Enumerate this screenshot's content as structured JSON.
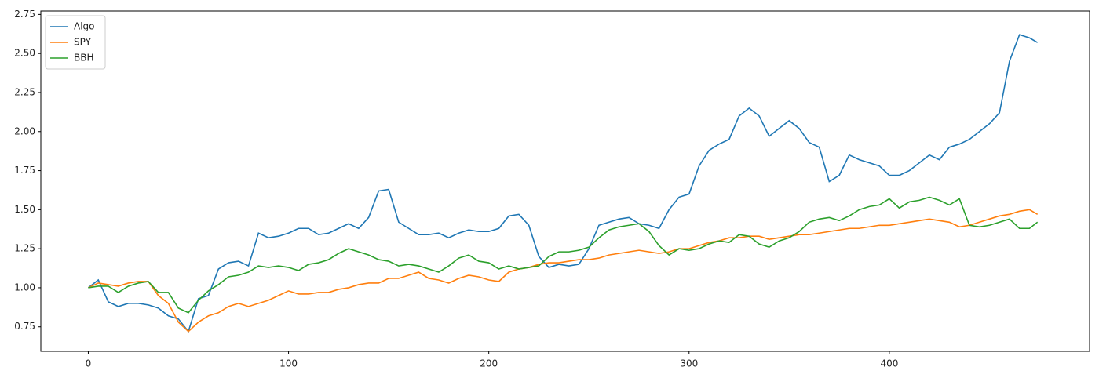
{
  "chart_data": {
    "type": "line",
    "x": [
      0,
      5,
      10,
      15,
      20,
      25,
      30,
      35,
      40,
      45,
      50,
      55,
      60,
      65,
      70,
      75,
      80,
      85,
      90,
      95,
      100,
      105,
      110,
      115,
      120,
      125,
      130,
      135,
      140,
      145,
      150,
      155,
      160,
      165,
      170,
      175,
      180,
      185,
      190,
      195,
      200,
      205,
      210,
      215,
      220,
      225,
      230,
      235,
      240,
      245,
      250,
      255,
      260,
      265,
      270,
      275,
      280,
      285,
      290,
      295,
      300,
      305,
      310,
      315,
      320,
      325,
      330,
      335,
      340,
      345,
      350,
      355,
      360,
      365,
      370,
      375,
      380,
      385,
      390,
      395,
      400,
      405,
      410,
      415,
      420,
      425,
      430,
      435,
      440,
      445,
      450,
      455,
      460,
      465,
      470,
      474
    ],
    "series": [
      {
        "name": "Algo",
        "color": "#1f77b4",
        "values": [
          1.0,
          1.05,
          0.91,
          0.88,
          0.9,
          0.9,
          0.89,
          0.87,
          0.82,
          0.8,
          0.72,
          0.93,
          0.95,
          1.12,
          1.16,
          1.17,
          1.14,
          1.35,
          1.32,
          1.33,
          1.35,
          1.38,
          1.38,
          1.34,
          1.35,
          1.38,
          1.41,
          1.38,
          1.45,
          1.62,
          1.63,
          1.42,
          1.38,
          1.34,
          1.34,
          1.35,
          1.32,
          1.35,
          1.37,
          1.36,
          1.36,
          1.38,
          1.46,
          1.47,
          1.4,
          1.2,
          1.13,
          1.15,
          1.14,
          1.15,
          1.25,
          1.4,
          1.42,
          1.44,
          1.45,
          1.41,
          1.4,
          1.38,
          1.5,
          1.58,
          1.6,
          1.78,
          1.88,
          1.92,
          1.95,
          2.1,
          2.15,
          2.1,
          1.97,
          2.02,
          2.07,
          2.02,
          1.93,
          1.9,
          1.68,
          1.72,
          1.85,
          1.82,
          1.8,
          1.78,
          1.72,
          1.72,
          1.75,
          1.8,
          1.85,
          1.82,
          1.9,
          1.92,
          1.95,
          2.0,
          2.05,
          2.12,
          2.45,
          2.62,
          2.6,
          2.57
        ]
      },
      {
        "name": "SPY",
        "color": "#ff7f0e",
        "values": [
          1.0,
          1.03,
          1.02,
          1.01,
          1.03,
          1.04,
          1.04,
          0.95,
          0.9,
          0.78,
          0.72,
          0.78,
          0.82,
          0.84,
          0.88,
          0.9,
          0.88,
          0.9,
          0.92,
          0.95,
          0.98,
          0.96,
          0.96,
          0.97,
          0.97,
          0.99,
          1.0,
          1.02,
          1.03,
          1.03,
          1.06,
          1.06,
          1.08,
          1.1,
          1.06,
          1.05,
          1.03,
          1.06,
          1.08,
          1.07,
          1.05,
          1.04,
          1.1,
          1.12,
          1.13,
          1.15,
          1.16,
          1.16,
          1.17,
          1.18,
          1.18,
          1.19,
          1.21,
          1.22,
          1.23,
          1.24,
          1.23,
          1.22,
          1.23,
          1.25,
          1.25,
          1.27,
          1.29,
          1.3,
          1.32,
          1.32,
          1.33,
          1.33,
          1.31,
          1.32,
          1.33,
          1.34,
          1.34,
          1.35,
          1.36,
          1.37,
          1.38,
          1.38,
          1.39,
          1.4,
          1.4,
          1.41,
          1.42,
          1.43,
          1.44,
          1.43,
          1.42,
          1.39,
          1.4,
          1.42,
          1.44,
          1.46,
          1.47,
          1.49,
          1.5,
          1.47
        ]
      },
      {
        "name": "BBH",
        "color": "#2ca02c",
        "values": [
          1.0,
          1.01,
          1.01,
          0.97,
          1.01,
          1.03,
          1.04,
          0.97,
          0.97,
          0.87,
          0.84,
          0.92,
          0.98,
          1.02,
          1.07,
          1.08,
          1.1,
          1.14,
          1.13,
          1.14,
          1.13,
          1.11,
          1.15,
          1.16,
          1.18,
          1.22,
          1.25,
          1.23,
          1.21,
          1.18,
          1.17,
          1.14,
          1.15,
          1.14,
          1.12,
          1.1,
          1.14,
          1.19,
          1.21,
          1.17,
          1.16,
          1.12,
          1.14,
          1.12,
          1.13,
          1.14,
          1.2,
          1.23,
          1.23,
          1.24,
          1.26,
          1.32,
          1.37,
          1.39,
          1.4,
          1.41,
          1.36,
          1.27,
          1.21,
          1.25,
          1.24,
          1.25,
          1.28,
          1.3,
          1.29,
          1.34,
          1.33,
          1.28,
          1.26,
          1.3,
          1.32,
          1.36,
          1.42,
          1.44,
          1.45,
          1.43,
          1.46,
          1.5,
          1.52,
          1.53,
          1.57,
          1.51,
          1.55,
          1.56,
          1.58,
          1.56,
          1.53,
          1.57,
          1.4,
          1.39,
          1.4,
          1.42,
          1.44,
          1.38,
          1.38,
          1.42
        ]
      }
    ],
    "xlim": [
      -23.7,
      500
    ],
    "xticks": [
      0,
      100,
      200,
      300,
      400
    ],
    "ylim": [
      0.593,
      2.772
    ],
    "yticks": [
      0.75,
      {
        "value": 1.0,
        "label": "1.00"
      },
      1.25,
      {
        "value": 1.5,
        "label": "1.50"
      },
      1.75,
      {
        "value": 2.0,
        "label": "2.00"
      },
      2.25,
      {
        "value": 2.5,
        "label": "2.50"
      },
      2.75
    ],
    "legend": "upper left",
    "grid": false
  }
}
